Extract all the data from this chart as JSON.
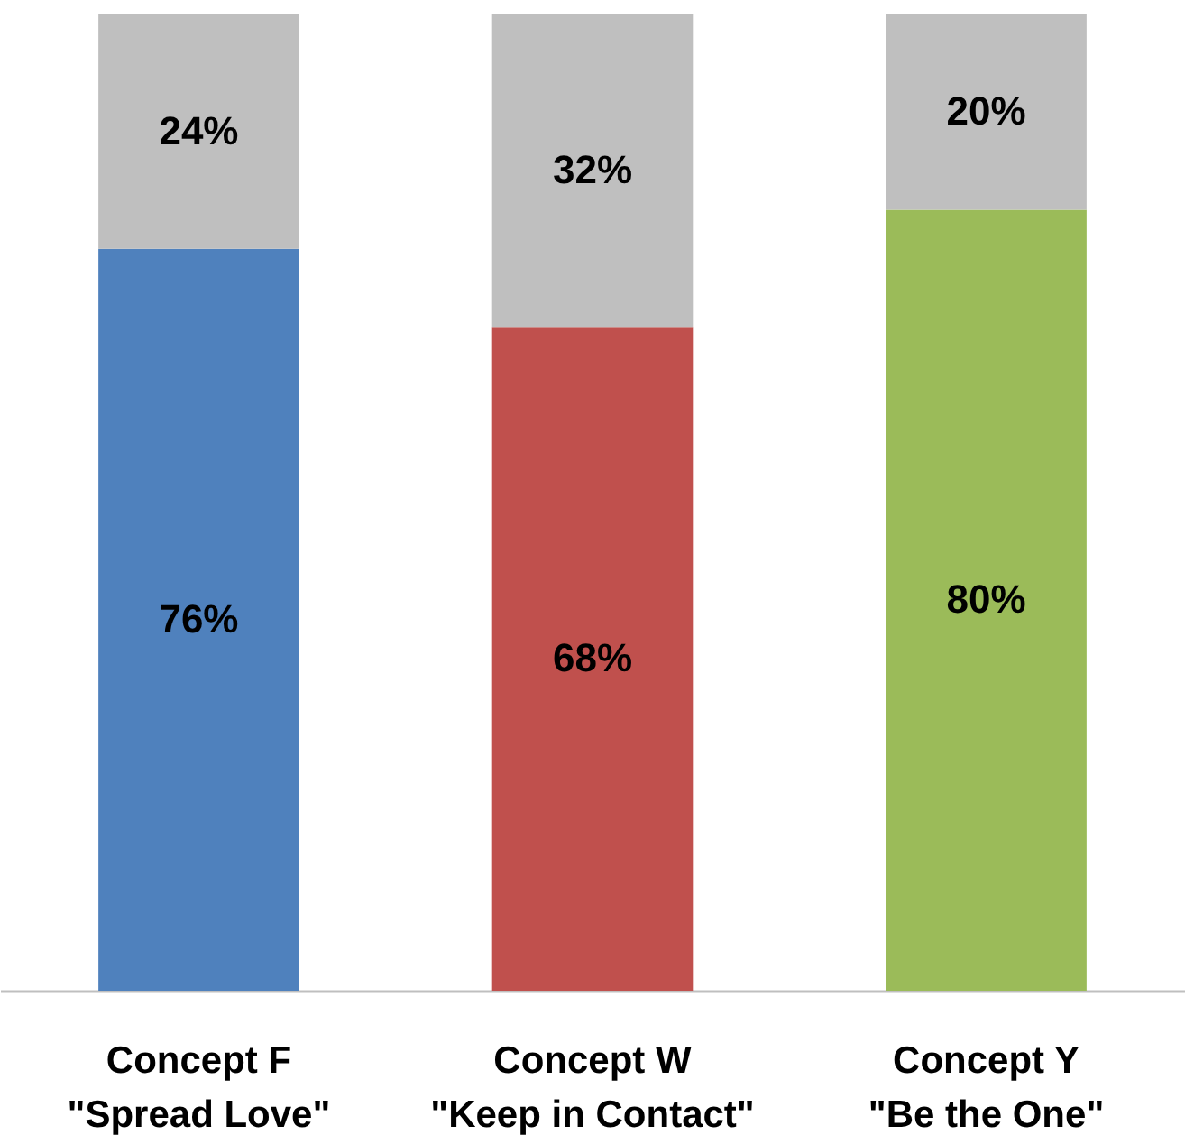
{
  "chart_data": {
    "type": "bar",
    "stacked": true,
    "tick_labels": "x",
    "categories": [
      "Concept F\n\"Spread Love\"",
      "Concept W\n\"Keep in Contact\"",
      "Concept Y\n\"Be the One\""
    ],
    "series": [
      {
        "values": [
          76,
          68,
          80
        ],
        "value_labels": [
          "76%",
          "68%",
          "80%"
        ],
        "colors": [
          "#4f81bd",
          "#c0504d",
          "#9bbb59"
        ]
      },
      {
        "values": [
          24,
          32,
          20
        ],
        "value_labels": [
          "24%",
          "32%",
          "20%"
        ],
        "color": "#bfbfbf"
      }
    ]
  }
}
